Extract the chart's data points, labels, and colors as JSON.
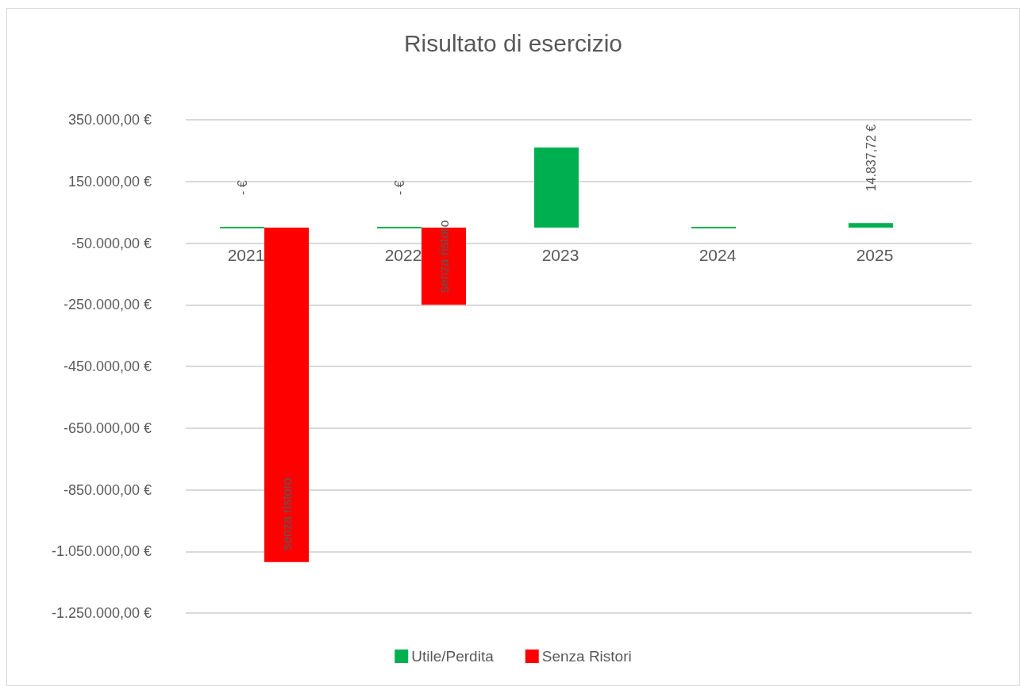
{
  "chart_data": {
    "type": "bar",
    "title": "Risultato di esercizio",
    "categories": [
      "2021",
      "2022",
      "2023",
      "2024",
      "2025"
    ],
    "series": [
      {
        "name": "Utile/Perdita",
        "color": "#00b050",
        "values": [
          0,
          0,
          260000,
          0,
          14837.72
        ],
        "value_labels": [
          "- €",
          "- €",
          null,
          null,
          "14.837,72 €"
        ]
      },
      {
        "name": "Senza Ristori",
        "color": "#ff0000",
        "values": [
          -1085000,
          -250000,
          null,
          null,
          null
        ],
        "value_labels": [
          "senza ristoro",
          "senza ristoro",
          null,
          null,
          null
        ]
      }
    ],
    "ylim": [
      -1250000,
      350000
    ],
    "yticks": [
      {
        "value": -1250000,
        "label": "-1.250.000,00 €"
      },
      {
        "value": -1050000,
        "label": "-1.050.000,00 €"
      },
      {
        "value": -850000,
        "label": "-850.000,00 €"
      },
      {
        "value": -650000,
        "label": "-650.000,00 €"
      },
      {
        "value": -450000,
        "label": "-450.000,00 €"
      },
      {
        "value": -250000,
        "label": "-250.000,00 €"
      },
      {
        "value": -50000,
        "label": "-50.000,00 €"
      },
      {
        "value": 150000,
        "label": "150.000,00 €"
      },
      {
        "value": 350000,
        "label": "350.000,00 €"
      }
    ],
    "grid": "y",
    "legend": "bottom"
  }
}
